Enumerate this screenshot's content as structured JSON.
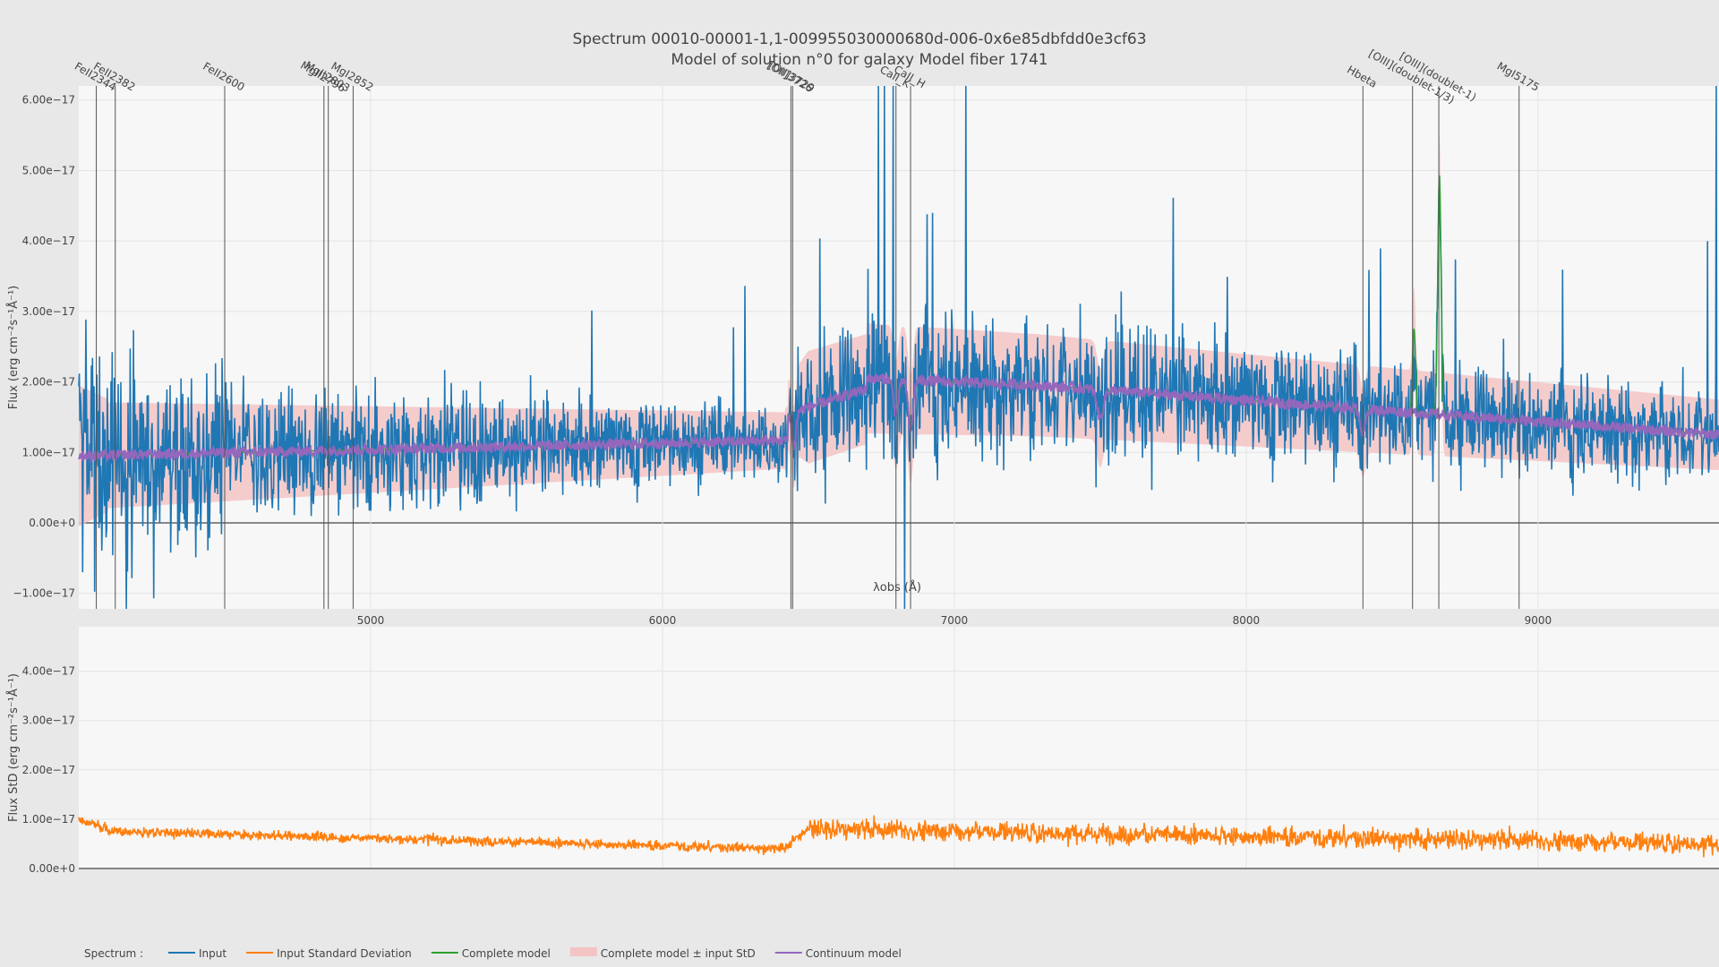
{
  "chart_data": [
    {
      "type": "line",
      "title": "Spectrum 00010-00001-1,1-009955030000680d-006-0x6e85dbfdd0e3cf63",
      "subtitle": "Model of solution n°0 for galaxy Model fiber 1741",
      "xlabel": "λobs (Å)",
      "ylabel": "Flux (erg cm⁻²s⁻¹Å⁻¹)",
      "xlim": [
        4000,
        9620
      ],
      "ylim": [
        -1.22e-17,
        6.2e-17
      ],
      "xticks": [
        {
          "value": 5000,
          "label": "5000"
        },
        {
          "value": 6000,
          "label": "6000"
        },
        {
          "value": 7000,
          "label": "7000"
        },
        {
          "value": 8000,
          "label": "8000"
        },
        {
          "value": 9000,
          "label": "9000"
        }
      ],
      "yticks": [
        {
          "value": -1e-17,
          "label": "−1.00e−17"
        },
        {
          "value": 0,
          "label": "0.00e+0"
        },
        {
          "value": 1e-17,
          "label": "1.00e−17"
        },
        {
          "value": 2e-17,
          "label": "2.00e−17"
        },
        {
          "value": 3e-17,
          "label": "3.00e−17"
        },
        {
          "value": 4e-17,
          "label": "4.00e−17"
        },
        {
          "value": 5e-17,
          "label": "5.00e−17"
        },
        {
          "value": 6e-17,
          "label": "6.00e−17"
        }
      ],
      "line_markers": [
        {
          "name": "FeII2344",
          "x": 4060
        },
        {
          "name": "FeII2382",
          "x": 4125
        },
        {
          "name": "FeII2600",
          "x": 4500
        },
        {
          "name": "MgII2796",
          "x": 4840
        },
        {
          "name": "MgII2803",
          "x": 4855
        },
        {
          "name": "MgI2852",
          "x": 4940
        },
        {
          "name": "[OII]3726",
          "x": 6440
        },
        {
          "name": "[OII]3729",
          "x": 6446
        },
        {
          "name": "CaII_K",
          "x": 6800
        },
        {
          "name": "CaII_H",
          "x": 6850
        },
        {
          "name": "Hbeta",
          "x": 8400
        },
        {
          "name": "[OIII](doublet-1/3)",
          "x": 8570
        },
        {
          "name": "[OIII](doublet-1)",
          "x": 8660
        },
        {
          "name": "MgI5175",
          "x": 8935
        }
      ],
      "series": [
        {
          "name": "Input",
          "color": "#1f77b4"
        },
        {
          "name": "Complete model",
          "color": "#2ca02c"
        },
        {
          "name": "Complete model ± input StD",
          "color": "#f4c4c4"
        },
        {
          "name": "Continuum model",
          "color": "#9467bd"
        }
      ]
    },
    {
      "type": "line",
      "ylabel": "Flux StD (erg cm⁻²s⁻¹Å⁻¹)",
      "xlim": [
        4000,
        9620
      ],
      "ylim": [
        0,
        4.9e-17
      ],
      "yticks": [
        {
          "value": 0,
          "label": "0.00e+0"
        },
        {
          "value": 1e-17,
          "label": "1.00e−17"
        },
        {
          "value": 2e-17,
          "label": "2.00e−17"
        },
        {
          "value": 3e-17,
          "label": "3.00e−17"
        },
        {
          "value": 4e-17,
          "label": "4.00e−17"
        }
      ],
      "series": [
        {
          "name": "Input Standard Deviation",
          "color": "#ff7f0e"
        }
      ]
    }
  ],
  "legend": {
    "title": "Spectrum :",
    "items": [
      {
        "label": "Input",
        "color": "#1f77b4",
        "kind": "line"
      },
      {
        "label": "Input Standard Deviation",
        "color": "#ff7f0e",
        "kind": "line"
      },
      {
        "label": "Complete model",
        "color": "#2ca02c",
        "kind": "line"
      },
      {
        "label": "Complete model ± input StD",
        "color": "#f4c4c4",
        "kind": "fill"
      },
      {
        "label": "Continuum model",
        "color": "#9467bd",
        "kind": "line"
      }
    ]
  }
}
